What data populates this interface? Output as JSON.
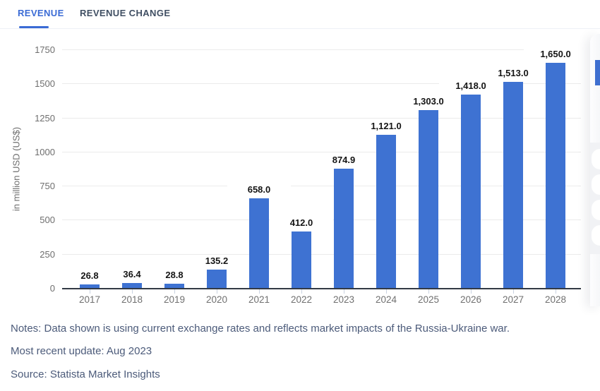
{
  "tabs": {
    "revenue_label": "REVENUE",
    "revenue_change_label": "REVENUE CHANGE",
    "active": "REVENUE"
  },
  "chart_data": {
    "type": "bar",
    "categories": [
      "2017",
      "2018",
      "2019",
      "2020",
      "2021",
      "2022",
      "2023",
      "2024",
      "2025",
      "2026",
      "2027",
      "2028"
    ],
    "values": [
      26.8,
      36.4,
      28.8,
      135.2,
      658.0,
      412.0,
      874.9,
      1121.0,
      1303.0,
      1418.0,
      1513.0,
      1650.0
    ],
    "value_labels": [
      "26.8",
      "36.4",
      "28.8",
      "135.2",
      "658.0",
      "412.0",
      "874.9",
      "1,121.0",
      "1,303.0",
      "1,418.0",
      "1,513.0",
      "1,650.0"
    ],
    "title": "",
    "xlabel": "",
    "ylabel": "in million USD (US$)",
    "yticks": [
      0,
      250,
      500,
      750,
      1000,
      1250,
      1500,
      1750
    ],
    "ylim": [
      0,
      1750
    ],
    "grid": true,
    "legend": false,
    "bar_color": "#3e72d2"
  },
  "notes": {
    "notes_line": "Notes: Data shown is using current exchange rates and reflects market impacts of the Russia-Ukraine war.",
    "update_line": "Most recent update: Aug 2023",
    "source_line": "Source: Statista Market Insights"
  },
  "colors": {
    "accent_blue": "#3a6bd5",
    "bar_blue": "#3e72d2",
    "axis_line": "#333a45",
    "gridline": "#ebebeb",
    "tick_text": "#6e6e6e",
    "year_text": "#707070",
    "note_text": "#4c5b7a"
  }
}
